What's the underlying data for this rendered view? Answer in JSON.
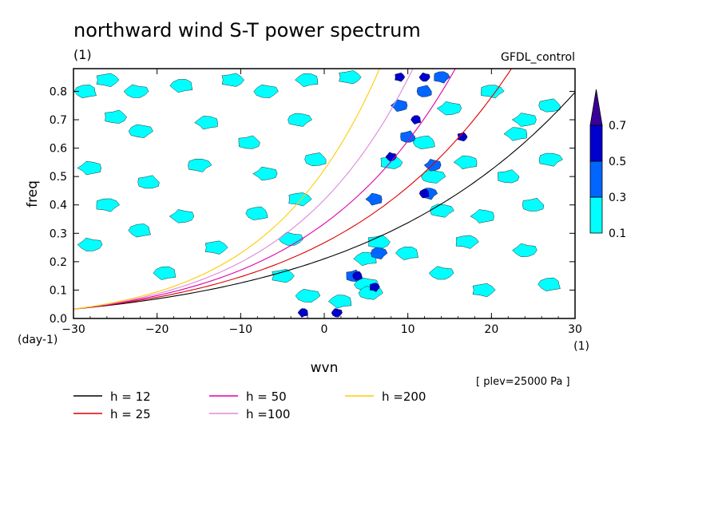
{
  "chart_data": {
    "type": "heatmap",
    "title": "northward wind S-T power spectrum",
    "title_unit": "(1)",
    "model": "GFDL_control",
    "xlabel": "wvn",
    "ylabel": "freq",
    "x_unit": "(1)",
    "y_unit": "(day-1)",
    "xlim": [
      -30,
      30
    ],
    "ylim": [
      0,
      0.88
    ],
    "x_ticks": [
      -30,
      -20,
      -10,
      0,
      10,
      20,
      30
    ],
    "y_ticks": [
      0.0,
      0.1,
      0.2,
      0.3,
      0.4,
      0.5,
      0.6,
      0.7,
      0.8
    ],
    "level_note": "[ plev=25000 Pa ]",
    "colorbar": {
      "levels": [
        0.1,
        0.3,
        0.5,
        0.7
      ],
      "colors": [
        "#00ffff",
        "#0066ff",
        "#0000cc",
        "#3a0099"
      ],
      "extend": "max"
    },
    "dispersion_curves": [
      {
        "name": "h = 12",
        "color": "#000000"
      },
      {
        "name": "h = 25",
        "color": "#dd0000"
      },
      {
        "name": "h = 50",
        "color": "#dd00aa"
      },
      {
        "name": "h =100",
        "color": "#dd88dd"
      },
      {
        "name": "h =200",
        "color": "#ffcc00"
      }
    ],
    "patches": [
      {
        "k": -28.5,
        "f": 0.8,
        "level": 0.1
      },
      {
        "k": -26,
        "f": 0.84,
        "level": 0.1
      },
      {
        "k": -22.5,
        "f": 0.8,
        "level": 0.1
      },
      {
        "k": -17,
        "f": 0.82,
        "level": 0.1
      },
      {
        "k": -11,
        "f": 0.84,
        "level": 0.1
      },
      {
        "k": -7,
        "f": 0.8,
        "level": 0.1
      },
      {
        "k": -2,
        "f": 0.84,
        "level": 0.1
      },
      {
        "k": -25,
        "f": 0.71,
        "level": 0.1
      },
      {
        "k": -22,
        "f": 0.66,
        "level": 0.1
      },
      {
        "k": -14,
        "f": 0.69,
        "level": 0.1
      },
      {
        "k": -9,
        "f": 0.62,
        "level": 0.1
      },
      {
        "k": -3,
        "f": 0.7,
        "level": 0.1
      },
      {
        "k": -28,
        "f": 0.53,
        "level": 0.1
      },
      {
        "k": -21,
        "f": 0.48,
        "level": 0.1
      },
      {
        "k": -15,
        "f": 0.54,
        "level": 0.1
      },
      {
        "k": -7,
        "f": 0.51,
        "level": 0.1
      },
      {
        "k": -1,
        "f": 0.56,
        "level": 0.1
      },
      {
        "k": -26,
        "f": 0.4,
        "level": 0.1
      },
      {
        "k": -17,
        "f": 0.36,
        "level": 0.1
      },
      {
        "k": -8,
        "f": 0.37,
        "level": 0.1
      },
      {
        "k": -3,
        "f": 0.42,
        "level": 0.1
      },
      {
        "k": -28,
        "f": 0.26,
        "level": 0.1
      },
      {
        "k": -22,
        "f": 0.31,
        "level": 0.1
      },
      {
        "k": -13,
        "f": 0.25,
        "level": 0.1
      },
      {
        "k": -4,
        "f": 0.28,
        "level": 0.1
      },
      {
        "k": -19,
        "f": 0.16,
        "level": 0.1
      },
      {
        "k": -5,
        "f": 0.15,
        "level": 0.1
      },
      {
        "k": -2,
        "f": 0.08,
        "level": 0.1
      },
      {
        "k": 2,
        "f": 0.06,
        "level": 0.1
      },
      {
        "k": 8,
        "f": 0.55,
        "level": 0.1
      },
      {
        "k": 13,
        "f": 0.5,
        "level": 0.1
      },
      {
        "k": 17,
        "f": 0.55,
        "level": 0.1
      },
      {
        "k": 22,
        "f": 0.5,
        "level": 0.1
      },
      {
        "k": 14,
        "f": 0.38,
        "level": 0.1
      },
      {
        "k": 19,
        "f": 0.36,
        "level": 0.1
      },
      {
        "k": 25,
        "f": 0.4,
        "level": 0.1
      },
      {
        "k": 27,
        "f": 0.56,
        "level": 0.1
      },
      {
        "k": 24,
        "f": 0.7,
        "level": 0.1
      },
      {
        "k": 27,
        "f": 0.75,
        "level": 0.1
      },
      {
        "k": 20,
        "f": 0.8,
        "level": 0.1
      },
      {
        "k": 15,
        "f": 0.74,
        "level": 0.1
      },
      {
        "k": 12,
        "f": 0.62,
        "level": 0.1
      },
      {
        "k": 17,
        "f": 0.27,
        "level": 0.1
      },
      {
        "k": 24,
        "f": 0.24,
        "level": 0.1
      },
      {
        "k": 27,
        "f": 0.12,
        "level": 0.1
      },
      {
        "k": 19,
        "f": 0.1,
        "level": 0.1
      },
      {
        "k": 14,
        "f": 0.16,
        "level": 0.1
      },
      {
        "k": 10,
        "f": 0.23,
        "level": 0.1
      },
      {
        "k": 3,
        "f": 0.85,
        "level": 0.1
      },
      {
        "k": 5,
        "f": 0.12,
        "level": 0.1
      },
      {
        "k": 3.5,
        "f": 0.15,
        "level": 0.3
      },
      {
        "k": 5,
        "f": 0.21,
        "level": 0.1
      },
      {
        "k": 6.5,
        "f": 0.27,
        "level": 0.1
      },
      {
        "k": 5.5,
        "f": 0.09,
        "level": 0.1
      },
      {
        "k": 4,
        "f": 0.15,
        "level": 0.5
      },
      {
        "k": 6,
        "f": 0.11,
        "level": 0.5
      },
      {
        "k": 6.5,
        "f": 0.23,
        "level": 0.3
      },
      {
        "k": 6,
        "f": 0.42,
        "level": 0.3
      },
      {
        "k": 8,
        "f": 0.57,
        "level": 0.5
      },
      {
        "k": 10,
        "f": 0.64,
        "level": 0.3
      },
      {
        "k": 12,
        "f": 0.44,
        "level": 0.5
      },
      {
        "k": 12.5,
        "f": 0.44,
        "level": 0.3
      },
      {
        "k": 9,
        "f": 0.75,
        "level": 0.3
      },
      {
        "k": 12,
        "f": 0.8,
        "level": 0.3
      },
      {
        "k": 14,
        "f": 0.85,
        "level": 0.3
      },
      {
        "k": 9,
        "f": 0.85,
        "level": 0.5
      },
      {
        "k": 12,
        "f": 0.85,
        "level": 0.5
      },
      {
        "k": 11,
        "f": 0.7,
        "level": 0.5
      },
      {
        "k": 16.5,
        "f": 0.64,
        "level": 0.5
      },
      {
        "k": 13,
        "f": 0.54,
        "level": 0.3
      },
      {
        "k": 1.5,
        "f": 0.02,
        "level": 0.5
      },
      {
        "k": -2.5,
        "f": 0.02,
        "level": 0.5
      },
      {
        "k": 23,
        "f": 0.65,
        "level": 0.1
      }
    ]
  }
}
